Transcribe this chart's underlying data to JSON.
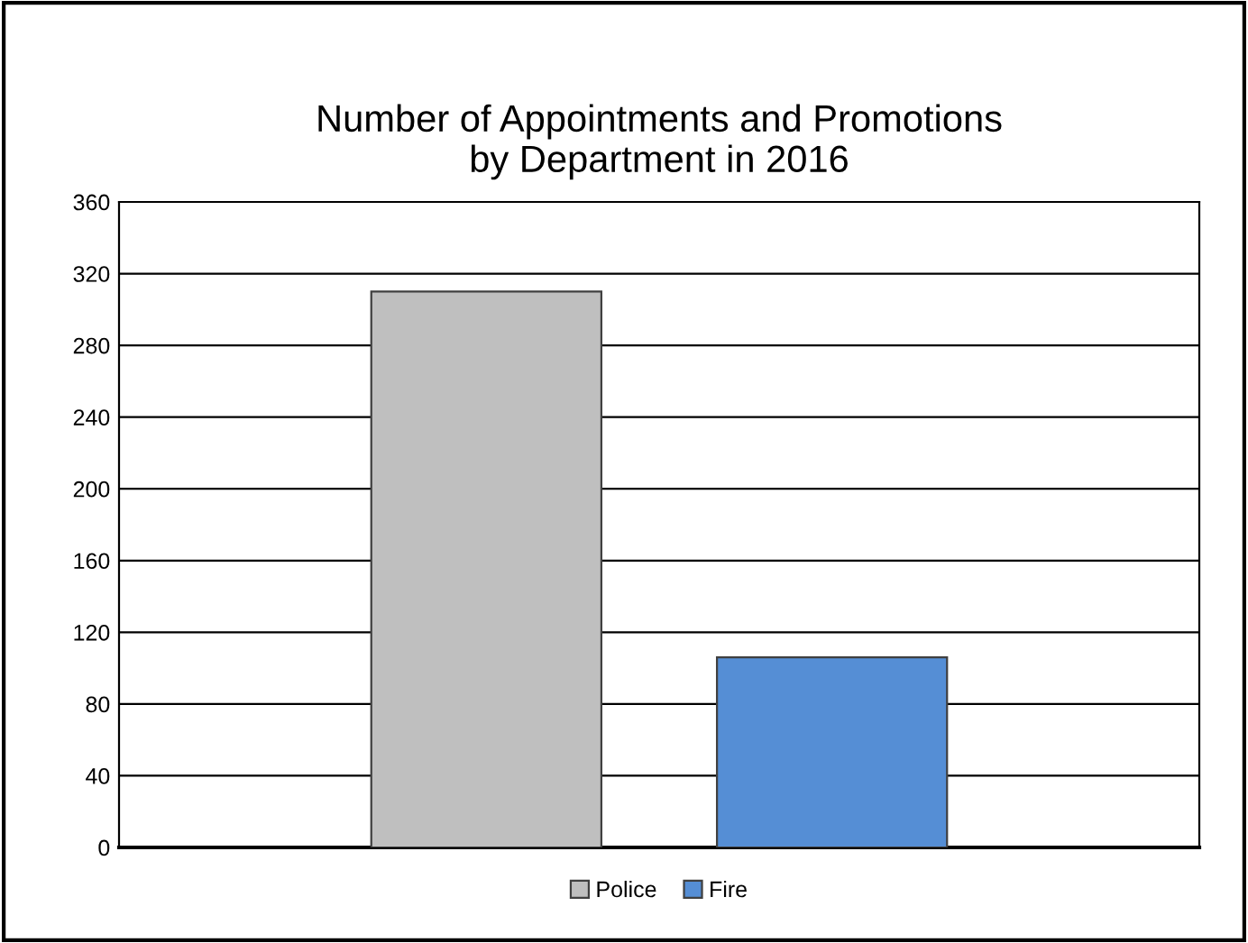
{
  "chart_data": {
    "type": "bar",
    "title": "Number of Appointments and Promotions\nby Department in 2016",
    "categories": [
      null
    ],
    "series": [
      {
        "name": "Police",
        "color": "#bfbfbf",
        "values": [
          310
        ]
      },
      {
        "name": "Fire",
        "color": "#558ed5",
        "values": [
          106
        ]
      }
    ],
    "ylim": [
      0,
      360
    ],
    "yticks": [
      0,
      40,
      80,
      120,
      160,
      200,
      240,
      280,
      320,
      360
    ],
    "grid": "y",
    "legend": "bottom"
  }
}
